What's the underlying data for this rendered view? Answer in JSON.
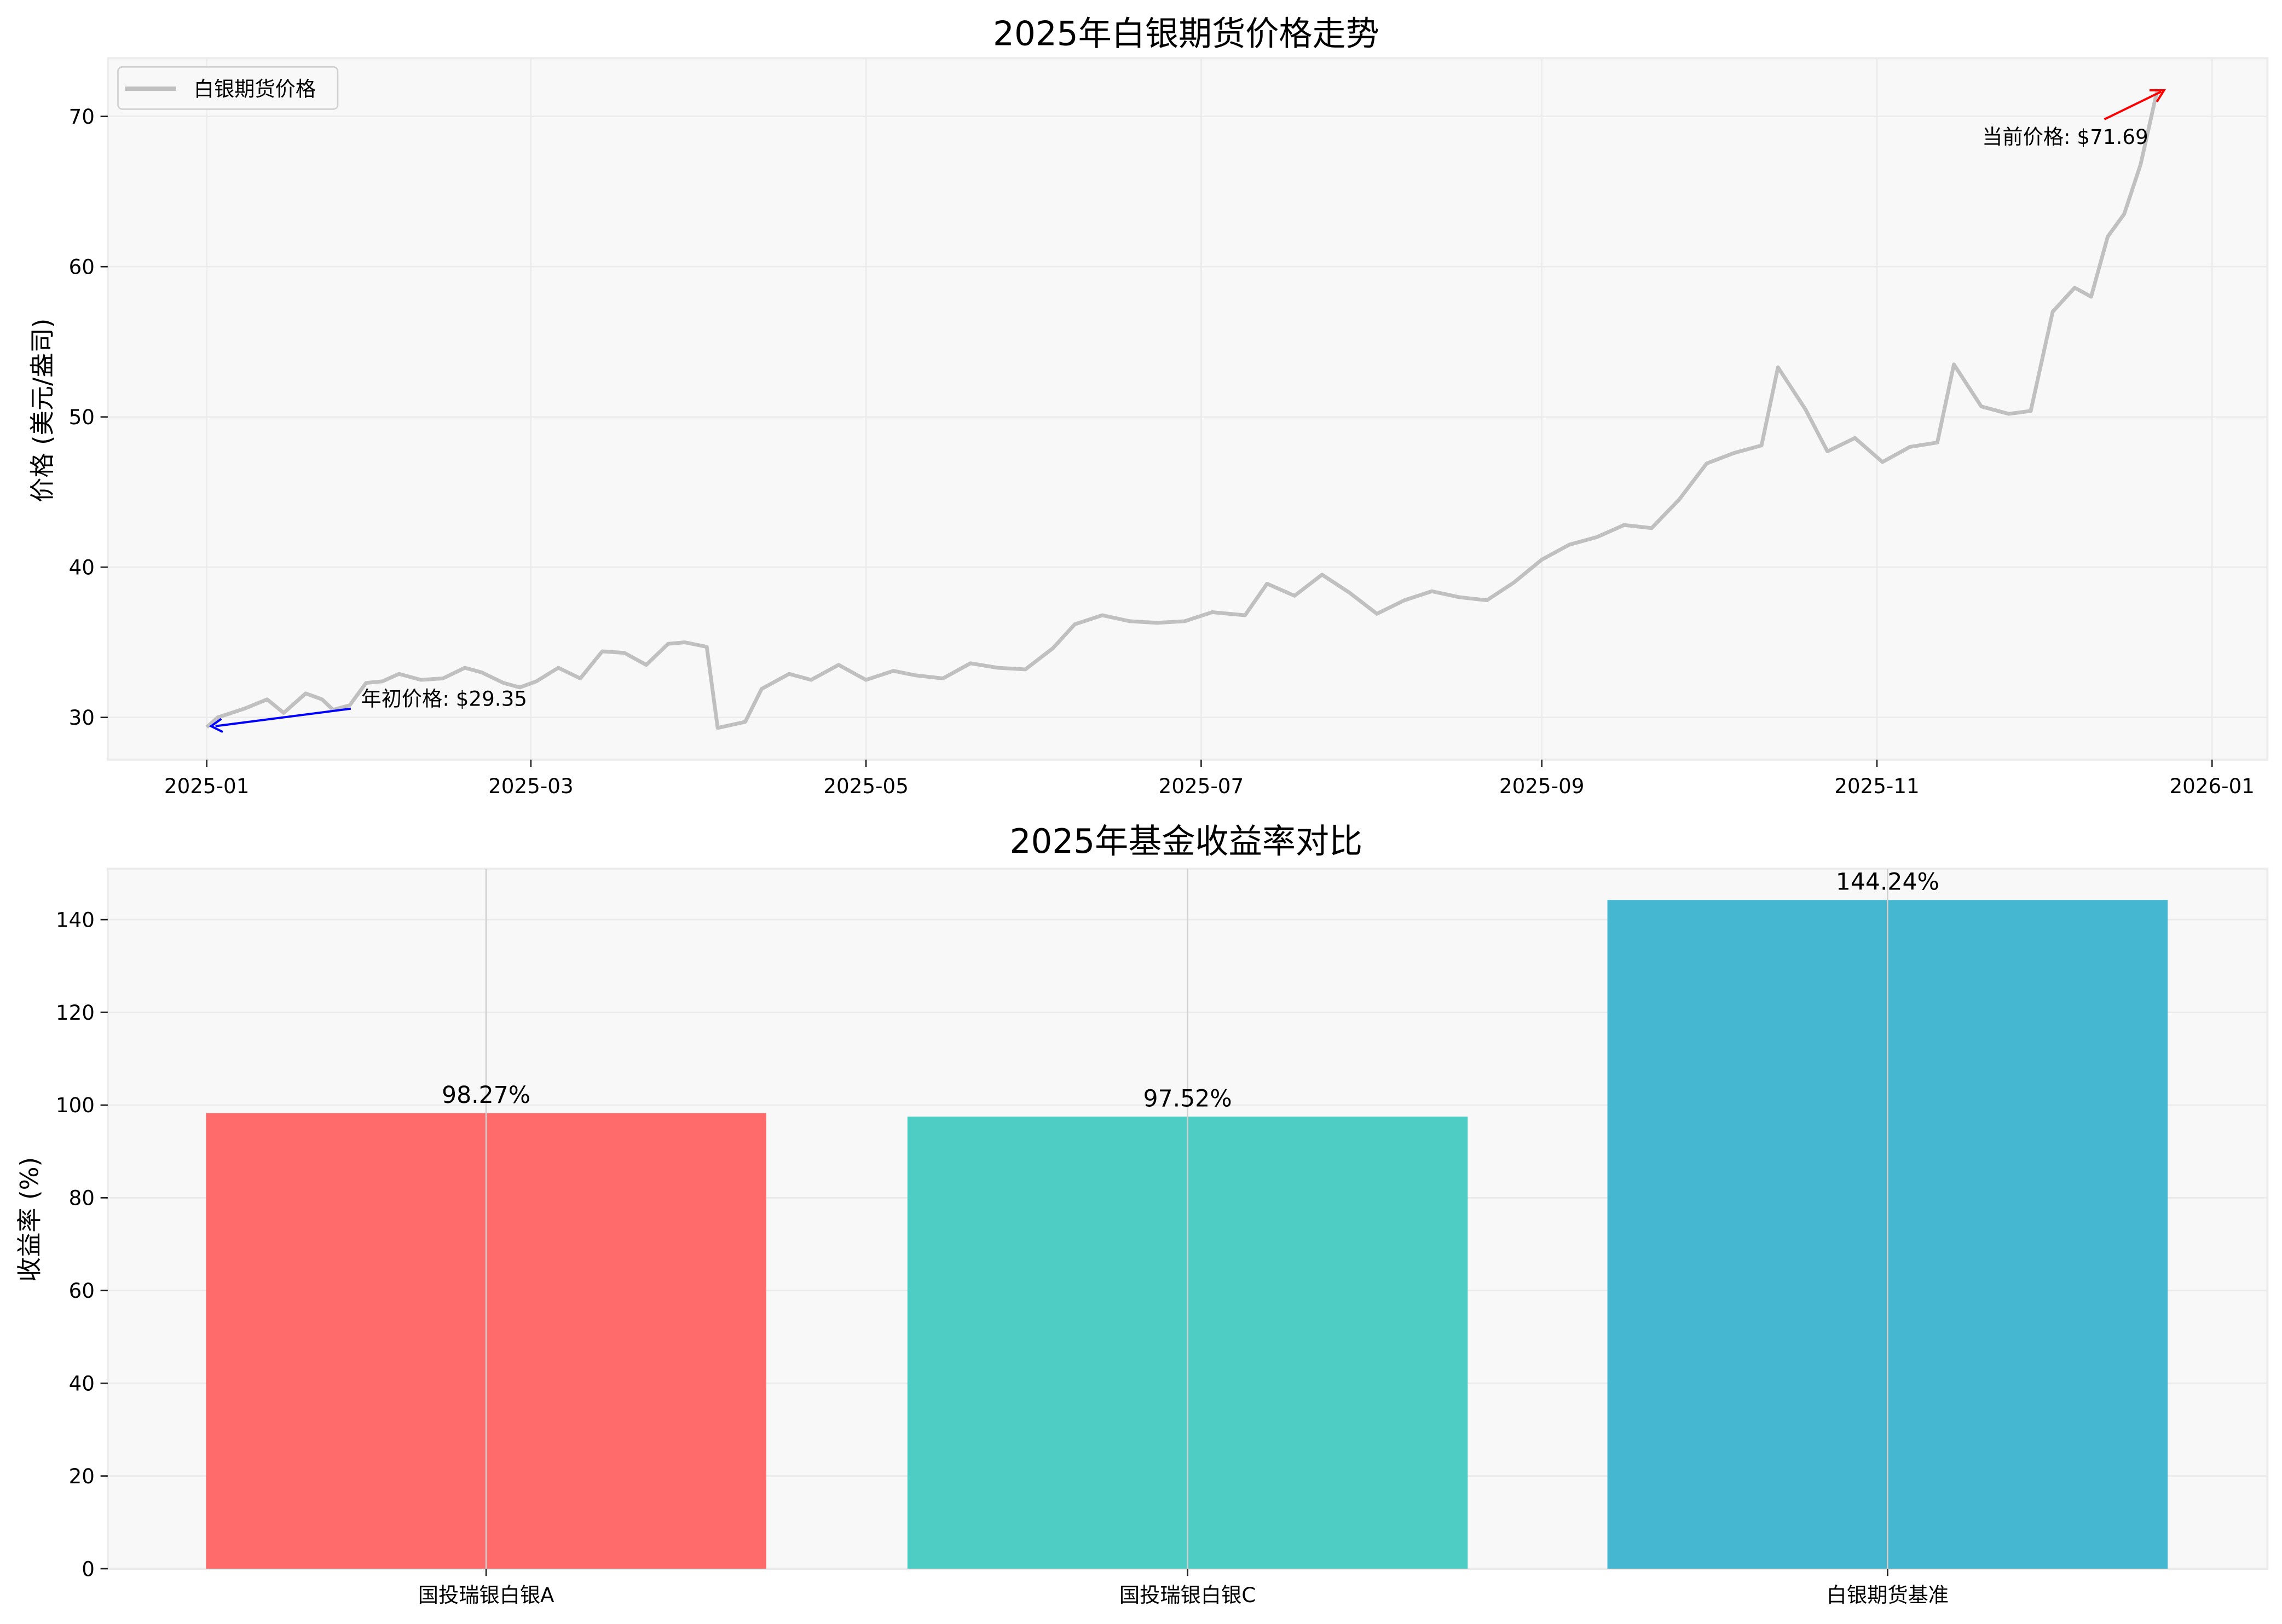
{
  "chart_data": [
    {
      "type": "line",
      "title": "2025年白银期货价格走势",
      "xlabel": "",
      "ylabel": "价格 (美元/盎司)",
      "xticks": [
        "2025-01",
        "2025-03",
        "2025-05",
        "2025-07",
        "2025-09",
        "2025-11",
        "2026-01"
      ],
      "yticks": [
        30,
        40,
        50,
        60,
        70
      ],
      "ylim": [
        26.8,
        73.8
      ],
      "grid": true,
      "legend": {
        "position": "upper left",
        "entries": [
          "白银期货价格"
        ]
      },
      "line_color": "#c0c0c0",
      "series": [
        {
          "name": "白银期货价格",
          "x": [
            "2025-01-01",
            "2025-01-03",
            "2025-01-08",
            "2025-01-12",
            "2025-01-15",
            "2025-01-19",
            "2025-01-22",
            "2025-01-24",
            "2025-01-27",
            "2025-01-30",
            "2025-02-02",
            "2025-02-05",
            "2025-02-09",
            "2025-02-13",
            "2025-02-17",
            "2025-02-20",
            "2025-02-24",
            "2025-02-27",
            "2025-03-02",
            "2025-03-06",
            "2025-03-10",
            "2025-03-14",
            "2025-03-18",
            "2025-03-22",
            "2025-03-26",
            "2025-03-29",
            "2025-04-02",
            "2025-04-04",
            "2025-04-09",
            "2025-04-12",
            "2025-04-17",
            "2025-04-21",
            "2025-04-26",
            "2025-05-01",
            "2025-05-06",
            "2025-05-10",
            "2025-05-15",
            "2025-05-20",
            "2025-05-25",
            "2025-05-30",
            "2025-06-04",
            "2025-06-08",
            "2025-06-13",
            "2025-06-18",
            "2025-06-23",
            "2025-06-28",
            "2025-07-03",
            "2025-07-09",
            "2025-07-13",
            "2025-07-18",
            "2025-07-23",
            "2025-07-28",
            "2025-08-02",
            "2025-08-07",
            "2025-08-12",
            "2025-08-17",
            "2025-08-22",
            "2025-08-27",
            "2025-09-01",
            "2025-09-06",
            "2025-09-11",
            "2025-09-16",
            "2025-09-21",
            "2025-09-26",
            "2025-10-01",
            "2025-10-06",
            "2025-10-11",
            "2025-10-14",
            "2025-10-19",
            "2025-10-23",
            "2025-10-28",
            "2025-11-02",
            "2025-11-07",
            "2025-11-12",
            "2025-11-15",
            "2025-11-20",
            "2025-11-25",
            "2025-11-29",
            "2025-12-03",
            "2025-12-07",
            "2025-12-10",
            "2025-12-13",
            "2025-12-16",
            "2025-12-19",
            "2025-12-22"
          ],
          "y": [
            29.35,
            30.0,
            30.6,
            31.2,
            30.3,
            31.6,
            31.2,
            30.5,
            30.8,
            32.3,
            32.4,
            32.9,
            32.5,
            32.6,
            33.3,
            33.0,
            32.3,
            32.0,
            32.4,
            33.3,
            32.6,
            34.4,
            34.3,
            33.5,
            34.9,
            35.0,
            34.7,
            29.3,
            29.7,
            31.9,
            32.9,
            32.5,
            33.5,
            32.5,
            33.1,
            32.8,
            32.6,
            33.6,
            33.3,
            33.2,
            34.6,
            36.2,
            36.8,
            36.4,
            36.3,
            36.4,
            37.0,
            36.8,
            38.9,
            38.1,
            39.5,
            38.3,
            36.9,
            37.8,
            38.4,
            38.0,
            37.8,
            39.0,
            40.5,
            41.5,
            42.0,
            42.8,
            42.6,
            44.5,
            46.9,
            47.6,
            48.1,
            53.3,
            50.5,
            47.7,
            48.6,
            47.0,
            48.0,
            48.3,
            53.5,
            50.7,
            50.2,
            50.4,
            57.0,
            58.6,
            58.0,
            62.0,
            63.5,
            66.8,
            71.69
          ]
        }
      ],
      "annotations": [
        {
          "text": "年初价格: $29.35",
          "xy": [
            "2025-01-01",
            29.35
          ],
          "arrow_color": "#0000ff"
        },
        {
          "text": "当前价格: $71.69",
          "xy": [
            "2025-12-23",
            71.69
          ],
          "arrow_color": "#ff0000"
        }
      ]
    },
    {
      "type": "bar",
      "title": "2025年基金收益率对比",
      "xlabel": "",
      "ylabel": "收益率 (%)",
      "categories": [
        "国投瑞银白银A",
        "国投瑞银白银C",
        "白银期货基准"
      ],
      "values": [
        98.27,
        97.52,
        144.24
      ],
      "value_labels": [
        "98.27%",
        "97.52%",
        "144.24%"
      ],
      "colors": [
        "#ff6b6b",
        "#4ecdc4",
        "#45b7d1"
      ],
      "yticks": [
        0,
        20,
        40,
        60,
        80,
        100,
        120,
        140
      ],
      "ylim": [
        0,
        151.5
      ],
      "grid": true
    }
  ],
  "figure": {
    "top_chart": {
      "title": "2025年白银期货价格走势",
      "ylabel": "价格 (美元/盎司)",
      "legend_label": "白银期货价格",
      "start_annotation": "年初价格: $29.35",
      "end_annotation": "当前价格: $71.69",
      "xtick_labels": [
        "2025-01",
        "2025-03",
        "2025-05",
        "2025-07",
        "2025-09",
        "2025-11",
        "2026-01"
      ],
      "ytick_labels": [
        "30",
        "40",
        "50",
        "60",
        "70"
      ]
    },
    "bottom_chart": {
      "title": "2025年基金收益率对比",
      "ylabel": "收益率 (%)",
      "categories": [
        "国投瑞银白银A",
        "国投瑞银白银C",
        "白银期货基准"
      ],
      "value_labels": [
        "98.27%",
        "97.52%",
        "144.24%"
      ],
      "ytick_labels": [
        "0",
        "20",
        "40",
        "60",
        "80",
        "100",
        "120",
        "140"
      ]
    },
    "colors": {
      "axes_bg": "#f8f8f8",
      "grid": "#e8e8e8",
      "line": "#c0c0c0",
      "arrow_start": "#0000ff",
      "arrow_end": "#ff0000"
    }
  }
}
